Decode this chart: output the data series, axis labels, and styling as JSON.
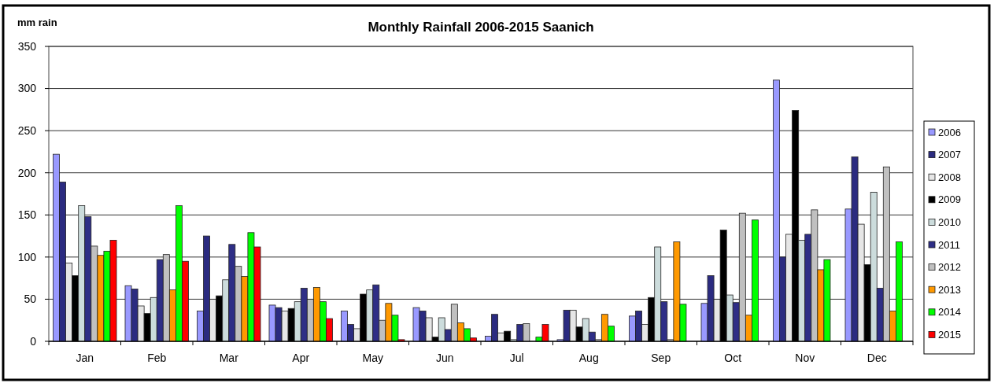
{
  "chart_data": {
    "type": "bar",
    "title": "Monthly Rainfall 2006-2015 Saanich",
    "ylabel": "mm rain",
    "categories": [
      "Jan",
      "Feb",
      "Mar",
      "Apr",
      "May",
      "Jun",
      "Jul",
      "Aug",
      "Sep",
      "Oct",
      "Nov",
      "Dec"
    ],
    "series": [
      {
        "name": "2006",
        "color": "#9999ff",
        "values": [
          222,
          66,
          36,
          43,
          36,
          40,
          6,
          2,
          30,
          45,
          310,
          157
        ]
      },
      {
        "name": "2007",
        "color": "#2b2b80",
        "values": [
          189,
          62,
          125,
          40,
          20,
          36,
          32,
          37,
          36,
          78,
          100,
          219
        ]
      },
      {
        "name": "2008",
        "color": "#e6e6e6",
        "values": [
          93,
          42,
          50,
          36,
          15,
          28,
          10,
          37,
          20,
          50,
          127,
          139
        ]
      },
      {
        "name": "2009",
        "color": "#000000",
        "values": [
          78,
          33,
          54,
          39,
          56,
          5,
          12,
          17,
          52,
          132,
          274,
          91
        ]
      },
      {
        "name": "2010",
        "color": "#ccdcdc",
        "values": [
          161,
          52,
          73,
          47,
          61,
          28,
          2,
          27,
          112,
          55,
          120,
          177
        ]
      },
      {
        "name": "2011",
        "color": "#2e2e86",
        "values": [
          148,
          97,
          115,
          63,
          67,
          14,
          20,
          11,
          47,
          46,
          127,
          63
        ]
      },
      {
        "name": "2012",
        "color": "#c0c0c0",
        "values": [
          113,
          103,
          89,
          50,
          25,
          44,
          21,
          2,
          2,
          152,
          156,
          207
        ]
      },
      {
        "name": "2013",
        "color": "#ff9900",
        "values": [
          102,
          61,
          77,
          64,
          45,
          22,
          0,
          32,
          118,
          31,
          85,
          36
        ]
      },
      {
        "name": "2014",
        "color": "#00ff00",
        "values": [
          107,
          161,
          129,
          47,
          31,
          15,
          5,
          18,
          44,
          144,
          97,
          118
        ]
      },
      {
        "name": "2015",
        "color": "#ff0000",
        "values": [
          120,
          95,
          112,
          27,
          2,
          4,
          20,
          null,
          null,
          null,
          null,
          null
        ]
      }
    ],
    "ylim": [
      0,
      350
    ],
    "yticks": [
      0,
      50,
      100,
      150,
      200,
      250,
      300,
      350
    ],
    "grid": "y",
    "legend": "right"
  }
}
